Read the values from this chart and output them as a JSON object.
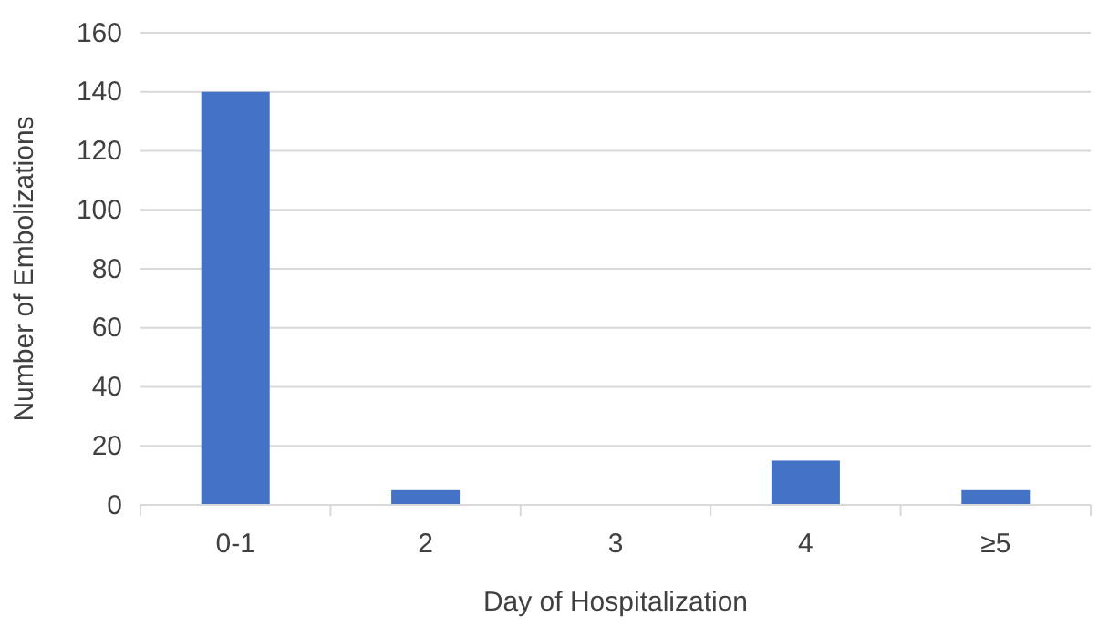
{
  "chart_data": {
    "type": "bar",
    "xlabel": "Day of Hospitalization",
    "ylabel": "Number of Embolizations",
    "categories": [
      "0-1",
      "2",
      "3",
      "4",
      "≥5"
    ],
    "values": [
      140,
      5,
      0,
      15,
      5
    ],
    "color": "#4472c4",
    "ylim": [
      0,
      160
    ],
    "yticks": [
      0,
      20,
      40,
      60,
      80,
      100,
      120,
      140,
      160
    ],
    "grid": "y"
  }
}
